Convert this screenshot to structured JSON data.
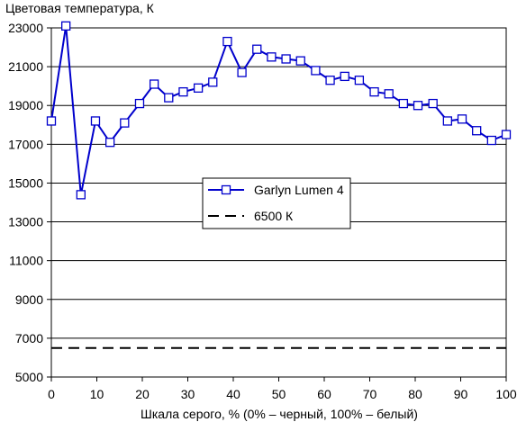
{
  "chart_data": {
    "type": "line",
    "title": "Цветовая температура, К",
    "xlabel": "Шкала серого, % (0% – черный, 100% – белый)",
    "ylabel": "",
    "xlim": [
      0,
      100
    ],
    "ylim": [
      5000,
      23000
    ],
    "xticks": [
      "0",
      "10",
      "20",
      "30",
      "40",
      "50",
      "60",
      "70",
      "80",
      "90",
      "100"
    ],
    "yticks": [
      "5000",
      "7000",
      "9000",
      "11000",
      "13000",
      "15000",
      "17000",
      "19000",
      "21000",
      "23000"
    ],
    "grid": "horizontal",
    "legend_position": "center",
    "series": [
      {
        "name": "Garlyn Lumen 4",
        "color": "#0000cc",
        "marker": "square",
        "x": [
          0,
          3.2,
          6.5,
          9.7,
          12.9,
          16.1,
          19.4,
          22.6,
          25.8,
          29.0,
          32.3,
          35.5,
          38.7,
          41.9,
          45.2,
          48.4,
          51.6,
          54.8,
          58.1,
          61.3,
          64.5,
          67.7,
          71.0,
          74.2,
          77.4,
          80.6,
          83.9,
          87.1,
          90.3,
          93.5,
          96.8,
          100
        ],
        "y": [
          18200,
          23100,
          14400,
          18200,
          17100,
          18100,
          19100,
          20100,
          19400,
          19700,
          19900,
          20200,
          22300,
          20700,
          21900,
          21500,
          21400,
          21300,
          20800,
          20300,
          20500,
          20300,
          19700,
          19600,
          19100,
          19000,
          19100,
          18200,
          18300,
          17700,
          17200,
          17500
        ]
      },
      {
        "name": "6500 К",
        "color": "#000000",
        "dash": "dashed",
        "x": [
          0,
          100
        ],
        "y": [
          6500,
          6500
        ]
      }
    ]
  }
}
